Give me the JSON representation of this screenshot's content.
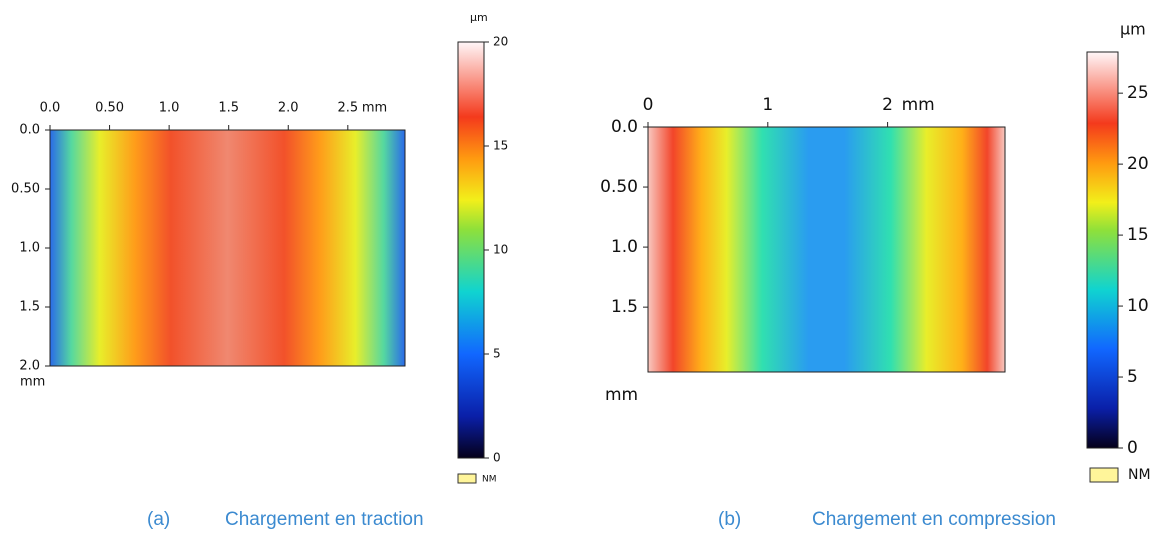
{
  "chart_data": [
    {
      "type": "heatmap",
      "caption_label": "(a)",
      "caption": "Chargement en traction",
      "x_unit": "mm",
      "y_unit": "mm",
      "color_unit": "µm",
      "legend_nm": "NM",
      "xlim": [
        0,
        2.98
      ],
      "ylim": [
        0,
        2.0
      ],
      "xticks": [
        {
          "value": 0,
          "label": "0.0"
        },
        {
          "value": 0.5,
          "label": "0.50"
        },
        {
          "value": 1,
          "label": "1.0"
        },
        1.5,
        {
          "value": 2,
          "label": "2.0"
        },
        {
          "value": 2.5,
          "label": "2.5"
        }
      ],
      "yticks": [
        {
          "value": 0,
          "label": "0.0"
        },
        {
          "value": 0.5,
          "label": "0.50"
        },
        {
          "value": 1,
          "label": "1.0"
        },
        1.5,
        {
          "value": 2,
          "label": "2.0"
        }
      ],
      "clim": [
        0,
        20
      ],
      "cticks": [
        0,
        5,
        10,
        15,
        20
      ]
    },
    {
      "type": "heatmap",
      "caption_label": "(b)",
      "caption": "Chargement en compression",
      "x_unit": "mm",
      "y_unit": "mm",
      "color_unit": "µm",
      "legend_nm": "NM",
      "xlim": [
        0,
        2.98
      ],
      "ylim": [
        0,
        2.04
      ],
      "xticks": [
        0,
        1,
        2
      ],
      "yticks": [
        {
          "value": 0,
          "label": "0.0"
        },
        {
          "value": 0.5,
          "label": "0.50"
        },
        {
          "value": 1,
          "label": "1.0"
        },
        1.5
      ],
      "clim": [
        0,
        27.9
      ],
      "cticks": [
        0,
        5,
        10,
        15,
        20,
        25
      ]
    }
  ]
}
